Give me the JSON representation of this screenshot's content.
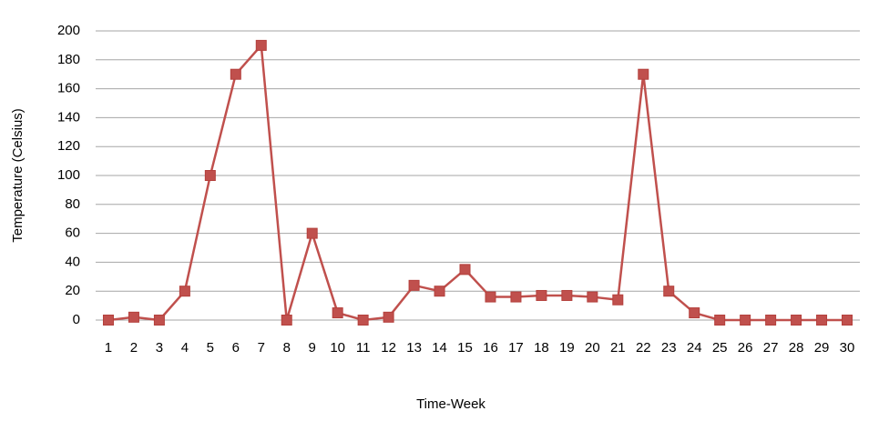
{
  "chart_data": {
    "type": "line",
    "x_label": "Time-Week",
    "y_label": "Temperature (Celsius)",
    "categories": [
      "1",
      "2",
      "3",
      "4",
      "5",
      "6",
      "7",
      "8",
      "9",
      "10",
      "11",
      "12",
      "13",
      "14",
      "15",
      "16",
      "17",
      "18",
      "19",
      "20",
      "21",
      "22",
      "23",
      "24",
      "25",
      "26",
      "27",
      "28",
      "29",
      "30"
    ],
    "series": [
      {
        "color": "#c0504d",
        "values": [
          0,
          2,
          0,
          20,
          100,
          170,
          190,
          0,
          60,
          5,
          0,
          2,
          24,
          20,
          35,
          16,
          16,
          17,
          17,
          16,
          14,
          170,
          20,
          5,
          0,
          0,
          0,
          0,
          0,
          0
        ]
      }
    ],
    "ylim": [
      0,
      200
    ],
    "yticks": [
      0,
      20,
      40,
      60,
      80,
      100,
      120,
      140,
      160,
      180,
      200
    ],
    "grid": true
  }
}
